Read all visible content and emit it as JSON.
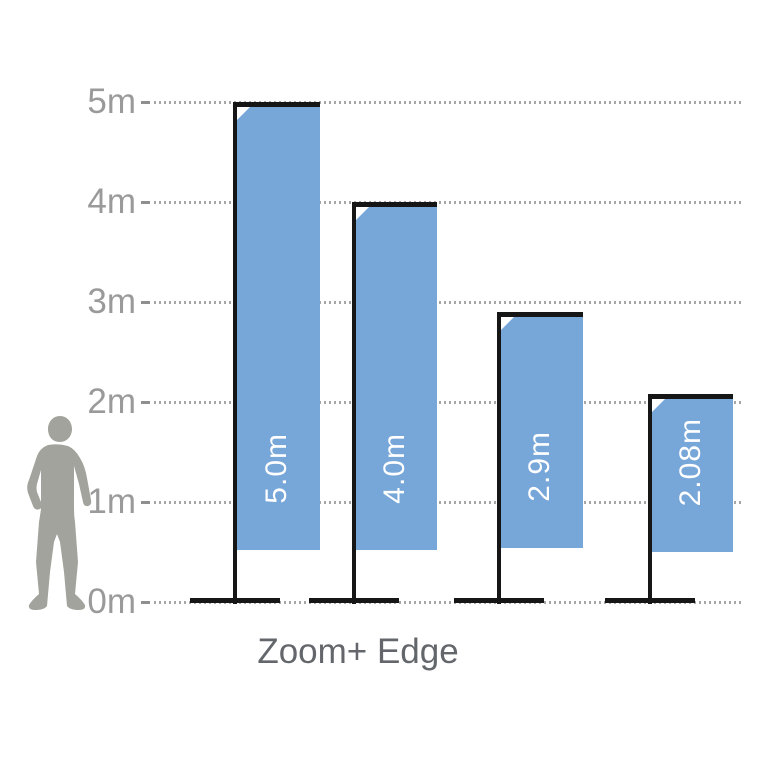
{
  "title": "Zoom+ Edge",
  "axis": {
    "unit": "m",
    "ticks": [
      {
        "label": "5m",
        "meters": 5
      },
      {
        "label": "4m",
        "meters": 4
      },
      {
        "label": "3m",
        "meters": 3
      },
      {
        "label": "2m",
        "meters": 2
      },
      {
        "label": "1m",
        "meters": 1
      },
      {
        "label": "0m",
        "meters": 0
      }
    ]
  },
  "flags": [
    {
      "label": "5.0m",
      "height_m": 5.0
    },
    {
      "label": "4.0m",
      "height_m": 4.0
    },
    {
      "label": "2.9m",
      "height_m": 2.9
    },
    {
      "label": "2.08m",
      "height_m": 2.08
    }
  ],
  "icons": {
    "human_silhouette": "standing-person-for-scale"
  },
  "colors": {
    "flag_fill": "#77A6D9",
    "hardware_black": "#161616",
    "axis_text": "#9A9A9A",
    "grid_dots": "#A6A6A6",
    "title_text": "#63676B",
    "silhouette": "#A3A39D",
    "flag_label_text": "#FFFFFF"
  },
  "chart_data": {
    "type": "bar",
    "title": "Zoom+ Edge",
    "categories": [
      "5.0m",
      "4.0m",
      "2.9m",
      "2.08m"
    ],
    "values": [
      5.0,
      4.0,
      2.9,
      2.08
    ],
    "bar_labels": [
      "5.0m",
      "4.0m",
      "2.9m",
      "2.08m"
    ],
    "xlabel": "",
    "ylabel": "",
    "ytick_labels": [
      "0m",
      "1m",
      "2m",
      "3m",
      "4m",
      "5m"
    ],
    "ylim": [
      0,
      5
    ],
    "grid": "horizontal-dotted",
    "legend": "none"
  }
}
